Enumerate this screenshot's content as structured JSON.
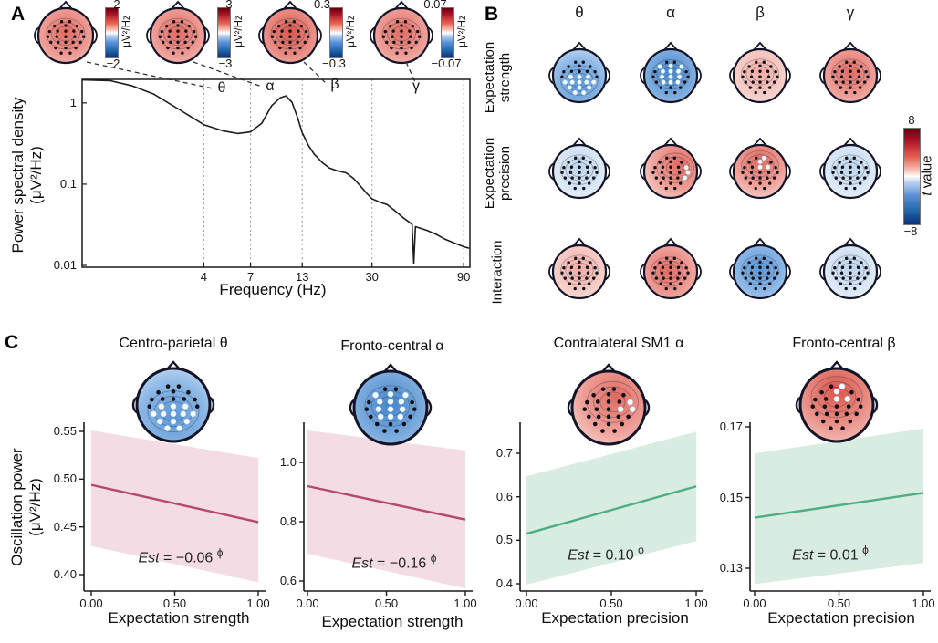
{
  "panels": {
    "a": "A",
    "b": "B",
    "c": "C"
  },
  "panelA": {
    "colorbars": [
      {
        "max": "2",
        "min": "−2",
        "unit": "μV²/Hz"
      },
      {
        "max": "3",
        "min": "−3",
        "unit": "μV²/Hz"
      },
      {
        "max": "0.3",
        "min": "−0.3",
        "unit": "μV²/Hz"
      },
      {
        "max": "0.07",
        "min": "−0.07",
        "unit": "μV²/Hz"
      }
    ],
    "maps": [
      "red:none",
      "red:none",
      "red-strong:none",
      "red:none"
    ],
    "band_labels": [
      "θ",
      "α",
      "β",
      "γ"
    ],
    "ylabel1": "Power spectral density",
    "ylabel2": "(μV²/Hz)",
    "xticks": [
      "4",
      "7",
      "13",
      "30",
      "90"
    ],
    "yticks": [
      "1",
      "0.1",
      "0.01"
    ]
  },
  "panelB": {
    "col_headers": [
      "θ",
      "α",
      "β",
      "γ"
    ],
    "row_labels": [
      [
        "Expectation",
        "strength"
      ],
      [
        "Expectation",
        "precision"
      ],
      [
        "Interaction",
        ""
      ]
    ],
    "maps": [
      [
        "blue:posterior",
        "blue-strong:central",
        "red-light:none",
        "red:none"
      ],
      [
        "pale-blue:none",
        "red:right-few",
        "red:frontal-few",
        "pale-blue:none"
      ],
      [
        "red-light:none",
        "red:central-none",
        "blue:none",
        "pale-blue:none"
      ]
    ],
    "colorbar": {
      "max": "8",
      "min": "−8",
      "label_it": "t",
      "label": " value"
    }
  },
  "panelC": {
    "ylabel1": "Oscillation power",
    "ylabel2": "(μV²/Hz)",
    "xticks": [
      "0.00",
      "0.50",
      "1.00"
    ]
  },
  "chart_data": [
    {
      "type": "line",
      "title": "Power spectral density",
      "xlabel": "Frequency (Hz)",
      "ylabel": "Power spectral density (μV²/Hz)",
      "xscale": "log",
      "yscale": "log",
      "xlim": [
        0.93,
        97
      ],
      "ylim": [
        0.0095,
        1.95
      ],
      "xticks": [
        4,
        7,
        13,
        30,
        90
      ],
      "yticks": [
        1,
        0.1,
        0.01
      ],
      "band_edges_hz": {
        "theta": [
          4,
          7
        ],
        "alpha": [
          7,
          13
        ],
        "beta": [
          13,
          30
        ],
        "gamma": [
          30,
          90
        ]
      },
      "points": [
        [
          0.93,
          1.92
        ],
        [
          1.3,
          1.88
        ],
        [
          1.7,
          1.62
        ],
        [
          2.2,
          1.28
        ],
        [
          3,
          0.82
        ],
        [
          4,
          0.54
        ],
        [
          5,
          0.455
        ],
        [
          6,
          0.42
        ],
        [
          7,
          0.44
        ],
        [
          8,
          0.56
        ],
        [
          9,
          0.92
        ],
        [
          10,
          1.16
        ],
        [
          10.7,
          1.22
        ],
        [
          11.5,
          1.02
        ],
        [
          12.3,
          0.66
        ],
        [
          13,
          0.43
        ],
        [
          14,
          0.3
        ],
        [
          15,
          0.235
        ],
        [
          16.5,
          0.185
        ],
        [
          18,
          0.158
        ],
        [
          20,
          0.145
        ],
        [
          22,
          0.138
        ],
        [
          24,
          0.118
        ],
        [
          26,
          0.096
        ],
        [
          28,
          0.078
        ],
        [
          30,
          0.066
        ],
        [
          33,
          0.06
        ],
        [
          36,
          0.056
        ],
        [
          40,
          0.046
        ],
        [
          44,
          0.038
        ],
        [
          47,
          0.034
        ],
        [
          48.5,
          0.032
        ],
        [
          49.5,
          0.0105
        ],
        [
          50.5,
          0.03
        ],
        [
          54,
          0.0285
        ],
        [
          58,
          0.027
        ],
        [
          65,
          0.024
        ],
        [
          72,
          0.021
        ],
        [
          80,
          0.019
        ],
        [
          90,
          0.017
        ],
        [
          96,
          0.0163
        ]
      ]
    },
    {
      "type": "line-with-band",
      "title": "Centro-parietal θ",
      "xlabel": "Expectation strength",
      "est_label": "Est",
      "est_value": " = −0.06 ",
      "est_sup": "ϕ",
      "x": [
        0,
        1
      ],
      "line": [
        0.494,
        0.455
      ],
      "band_upper": [
        0.551,
        0.522
      ],
      "band_lower": [
        0.43,
        0.392
      ],
      "yticks": [
        0.4,
        0.45,
        0.5,
        0.55
      ],
      "ytick_labels": [
        "0.40",
        "0.45",
        "0.50",
        "0.55"
      ],
      "xtick_labels": [
        "0.00",
        "0.50",
        "1.00"
      ],
      "color_line": "#b4496d",
      "color_band": "#f3dce4",
      "topomap": "blue:posterior"
    },
    {
      "type": "line-with-band",
      "title": "Fronto-central α",
      "xlabel": "Expectation strength",
      "est_label": "Est",
      "est_value": " = −0.16 ",
      "est_sup": "ϕ",
      "x": [
        0,
        1
      ],
      "line": [
        0.92,
        0.807
      ],
      "band_upper": [
        1.108,
        1.04
      ],
      "band_lower": [
        0.692,
        0.575
      ],
      "yticks": [
        0.6,
        0.8,
        1.0
      ],
      "ytick_labels": [
        "0.6",
        "0.8",
        "1.0"
      ],
      "xtick_labels": [
        "0.00",
        "0.50",
        "1.00"
      ],
      "color_line": "#b4496d",
      "color_band": "#f3dce4",
      "topomap": "blue-strong:central"
    },
    {
      "type": "line-with-band",
      "title": "Contralateral SM1 α",
      "xlabel": "Expectation precision",
      "est_label": "Est",
      "est_value": " = 0.10 ",
      "est_sup": "ϕ",
      "x": [
        0,
        1
      ],
      "line": [
        0.515,
        0.624
      ],
      "band_upper": [
        0.647,
        0.75
      ],
      "band_lower": [
        0.398,
        0.498
      ],
      "yticks": [
        0.4,
        0.5,
        0.6,
        0.7
      ],
      "ytick_labels": [
        "0.4",
        "0.5",
        "0.6",
        "0.7"
      ],
      "xtick_labels": [
        "0.00",
        "0.50",
        "1.00"
      ],
      "color_line": "#4fae81",
      "color_band": "#d9ece2",
      "topomap": "red:right-central"
    },
    {
      "type": "line-with-band",
      "title": "Fronto-central β",
      "xlabel": "Expectation precision",
      "est_label": "Est",
      "est_value": " = 0.01 ",
      "est_sup": "ϕ",
      "x": [
        0,
        1
      ],
      "line": [
        0.1443,
        0.1513
      ],
      "band_upper": [
        0.1625,
        0.1695
      ],
      "band_lower": [
        0.1255,
        0.1315
      ],
      "yticks": [
        0.13,
        0.15,
        0.17
      ],
      "ytick_labels": [
        "0.13",
        "0.15",
        "0.17"
      ],
      "xtick_labels": [
        "0.00",
        "0.50",
        "1.00"
      ],
      "color_line": "#4fae81",
      "color_band": "#d9ece2",
      "topomap": "red-strong:frontal-few"
    }
  ]
}
